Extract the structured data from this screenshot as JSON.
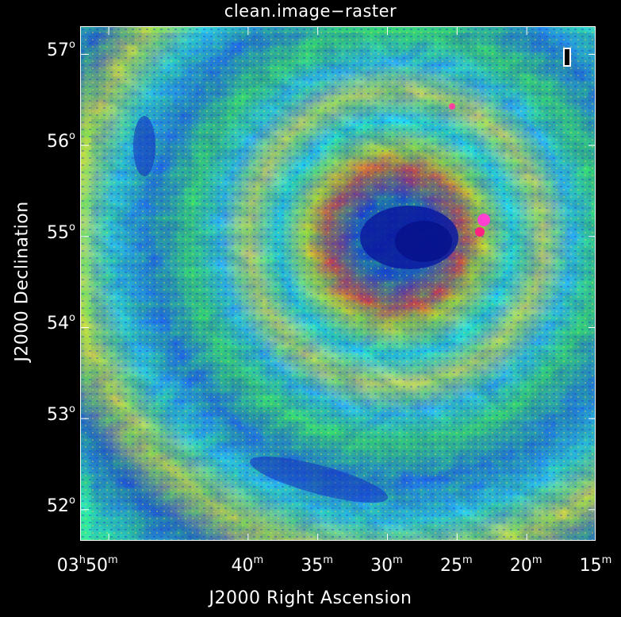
{
  "title": "clean.image−raster",
  "chart_data": {
    "type": "heatmap",
    "colormap": "rainbow",
    "title": "clean.image−raster",
    "xlabel": "J2000 Right Ascension",
    "ylabel": "J2000 Declination",
    "x_ticks": [
      {
        "main": "03",
        "unit1": "h",
        "min": "50",
        "unit2": "m"
      },
      {
        "main": "40",
        "unit1": "",
        "min": "",
        "unit2": "m"
      },
      {
        "main": "35",
        "unit1": "",
        "min": "",
        "unit2": "m"
      },
      {
        "main": "30",
        "unit1": "",
        "min": "",
        "unit2": "m"
      },
      {
        "main": "25",
        "unit1": "",
        "min": "",
        "unit2": "m"
      },
      {
        "main": "20",
        "unit1": "",
        "min": "",
        "unit2": "m"
      },
      {
        "main": "15",
        "unit1": "",
        "min": "",
        "unit2": "m"
      }
    ],
    "x_tick_values_minutes": [
      50,
      40,
      35,
      30,
      25,
      20,
      15
    ],
    "x_range_minutes": [
      52.0,
      15.0
    ],
    "y_ticks": [
      {
        "deg": "57",
        "unit": "o"
      },
      {
        "deg": "56",
        "unit": "o"
      },
      {
        "deg": "55",
        "unit": "o"
      },
      {
        "deg": "54",
        "unit": "o"
      },
      {
        "deg": "53",
        "unit": "o"
      },
      {
        "deg": "52",
        "unit": "o"
      }
    ],
    "y_tick_values_deg": [
      57,
      56,
      55,
      54,
      53,
      52
    ],
    "y_range_deg": [
      51.65,
      57.3
    ],
    "features": {
      "central_minimum": "dark blue region near RA 03h28m, Dec 55°",
      "hot_ring": "red/yellow ring around center",
      "peak": "magenta spot near RA 03h22m, Dec 55°"
    }
  }
}
